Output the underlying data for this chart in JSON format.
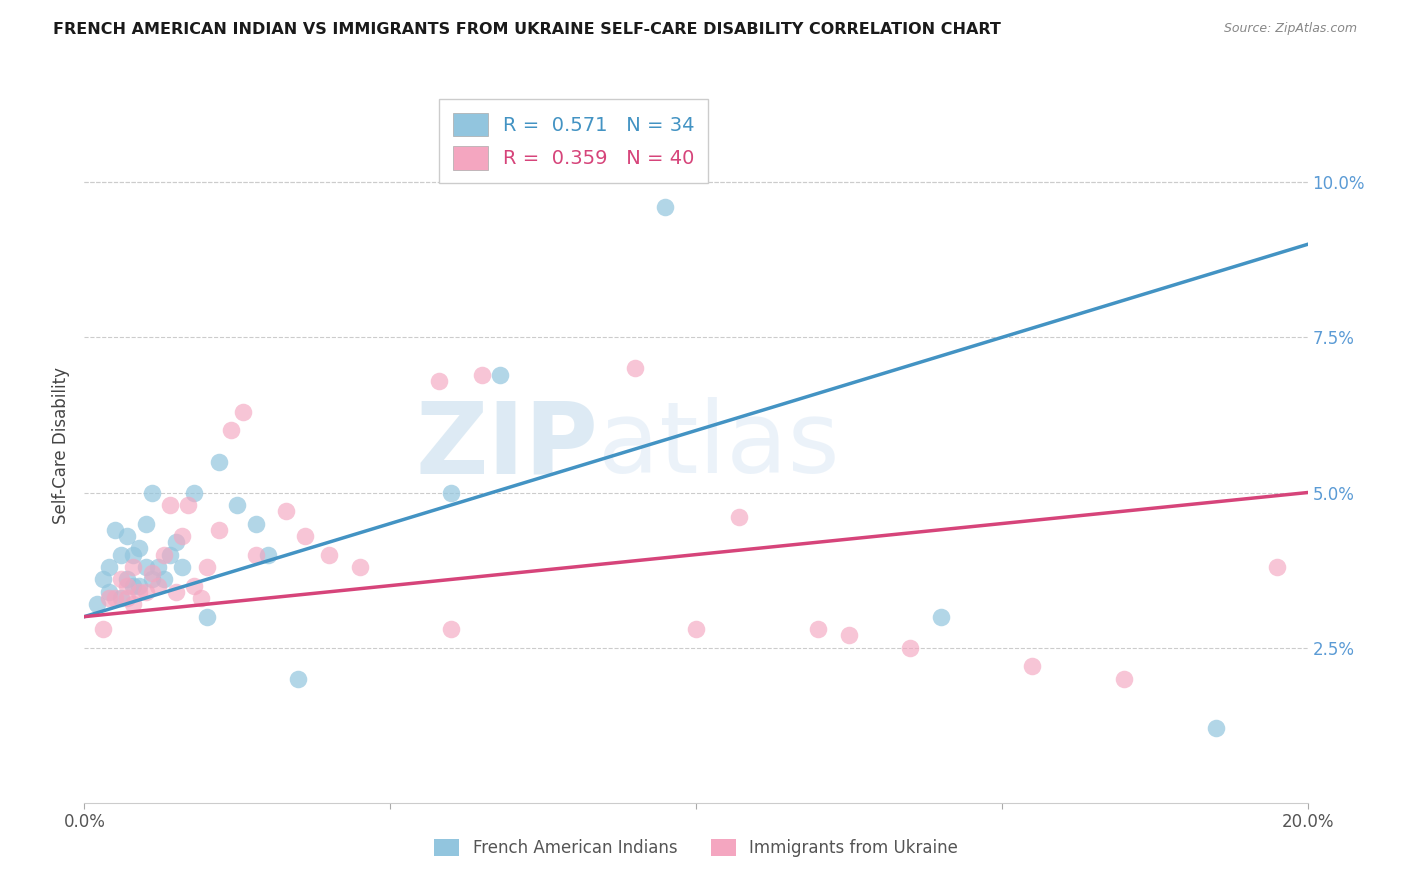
{
  "title": "FRENCH AMERICAN INDIAN VS IMMIGRANTS FROM UKRAINE SELF-CARE DISABILITY CORRELATION CHART",
  "source": "Source: ZipAtlas.com",
  "ylabel": "Self-Care Disability",
  "xlim": [
    0.0,
    0.2
  ],
  "ylim": [
    0.0,
    0.115
  ],
  "blue_R": 0.571,
  "blue_N": 34,
  "pink_R": 0.359,
  "pink_N": 40,
  "blue_color": "#92c5de",
  "pink_color": "#f4a6c0",
  "blue_line_color": "#4393c3",
  "pink_line_color": "#d6447a",
  "legend_label_blue": "French American Indians",
  "legend_label_pink": "Immigrants from Ukraine",
  "watermark_zip": "ZIP",
  "watermark_atlas": "atlas",
  "grid_color": "#cccccc",
  "blue_x": [
    0.002,
    0.003,
    0.004,
    0.004,
    0.005,
    0.006,
    0.006,
    0.007,
    0.007,
    0.008,
    0.008,
    0.009,
    0.009,
    0.01,
    0.01,
    0.011,
    0.011,
    0.012,
    0.013,
    0.014,
    0.015,
    0.016,
    0.018,
    0.02,
    0.022,
    0.025,
    0.028,
    0.03,
    0.035,
    0.06,
    0.068,
    0.095,
    0.14,
    0.185
  ],
  "blue_y": [
    0.032,
    0.036,
    0.034,
    0.038,
    0.044,
    0.033,
    0.04,
    0.036,
    0.043,
    0.035,
    0.04,
    0.035,
    0.041,
    0.038,
    0.045,
    0.036,
    0.05,
    0.038,
    0.036,
    0.04,
    0.042,
    0.038,
    0.05,
    0.03,
    0.055,
    0.048,
    0.045,
    0.04,
    0.02,
    0.05,
    0.069,
    0.096,
    0.03,
    0.012
  ],
  "pink_x": [
    0.003,
    0.004,
    0.005,
    0.006,
    0.007,
    0.007,
    0.008,
    0.008,
    0.009,
    0.01,
    0.011,
    0.012,
    0.013,
    0.014,
    0.015,
    0.016,
    0.017,
    0.018,
    0.019,
    0.02,
    0.022,
    0.024,
    0.026,
    0.028,
    0.033,
    0.036,
    0.04,
    0.045,
    0.058,
    0.06,
    0.065,
    0.09,
    0.1,
    0.107,
    0.12,
    0.125,
    0.135,
    0.155,
    0.17,
    0.195
  ],
  "pink_y": [
    0.028,
    0.033,
    0.033,
    0.036,
    0.033,
    0.035,
    0.032,
    0.038,
    0.034,
    0.034,
    0.037,
    0.035,
    0.04,
    0.048,
    0.034,
    0.043,
    0.048,
    0.035,
    0.033,
    0.038,
    0.044,
    0.06,
    0.063,
    0.04,
    0.047,
    0.043,
    0.04,
    0.038,
    0.068,
    0.028,
    0.069,
    0.07,
    0.028,
    0.046,
    0.028,
    0.027,
    0.025,
    0.022,
    0.02,
    0.038
  ],
  "blue_line_x0": 0.0,
  "blue_line_y0": 0.03,
  "blue_line_x1": 0.2,
  "blue_line_y1": 0.09,
  "pink_line_x0": 0.0,
  "pink_line_y0": 0.03,
  "pink_line_x1": 0.2,
  "pink_line_y1": 0.05
}
